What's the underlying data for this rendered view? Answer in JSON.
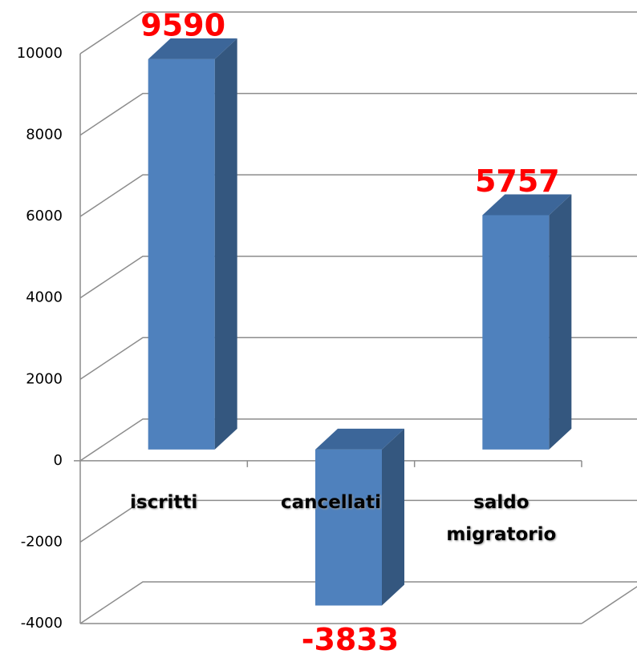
{
  "chart_data": {
    "type": "bar3d",
    "categories": [
      "iscritti",
      "cancellati",
      "saldo migratorio"
    ],
    "values": [
      9590,
      -3833,
      5757
    ],
    "color": "#4f81bd",
    "ylim": [
      -4000,
      10000
    ],
    "yticks": [
      -4000,
      -2000,
      0,
      2000,
      4000,
      6000,
      8000,
      10000
    ],
    "grid": true
  }
}
